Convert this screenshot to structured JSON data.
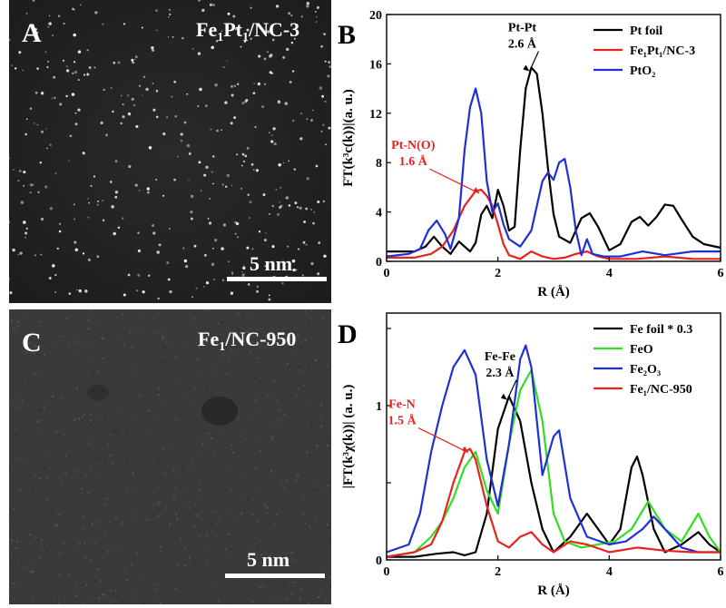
{
  "panels": {
    "A": {
      "letter": "A",
      "label_main": "Fe",
      "label_sub1": "1",
      "label_mid": "Pt",
      "label_sub2": "1",
      "label_end": "/NC-3",
      "scale": "5 nm"
    },
    "C": {
      "letter": "C",
      "label_main": "Fe",
      "label_sub1": "1",
      "label_end": "/NC-950",
      "scale": "5 nm"
    },
    "B": {
      "letter": "B"
    },
    "D": {
      "letter": "D"
    }
  },
  "chart_data": [
    {
      "panel": "B",
      "type": "line",
      "xlabel": "R (Å)",
      "ylabel": "FT(k³c(k))|(a. u.)",
      "xlim": [
        0,
        6
      ],
      "ylim": [
        0,
        20
      ],
      "xticks": [
        0,
        2,
        4,
        6
      ],
      "yticks": [
        0,
        4,
        8,
        12,
        16,
        20
      ],
      "legend_position": "top-right",
      "series": [
        {
          "name": "Pt foil",
          "color": "#000000",
          "x": [
            0,
            0.5,
            0.7,
            0.85,
            1.0,
            1.15,
            1.3,
            1.4,
            1.5,
            1.6,
            1.7,
            1.8,
            1.9,
            2.0,
            2.1,
            2.2,
            2.3,
            2.4,
            2.5,
            2.6,
            2.7,
            2.8,
            2.9,
            3.0,
            3.1,
            3.3,
            3.5,
            3.65,
            3.8,
            4.0,
            4.2,
            4.4,
            4.55,
            4.7,
            4.85,
            5.0,
            5.15,
            5.3,
            5.5,
            5.7,
            6.0
          ],
          "y": [
            0.8,
            0.8,
            1.2,
            2.0,
            1.2,
            0.6,
            1.6,
            1.2,
            0.8,
            1.5,
            3.8,
            4.5,
            3.5,
            5.8,
            4.5,
            2.5,
            2.8,
            9.0,
            14.0,
            15.7,
            15.2,
            12.0,
            7.5,
            3.8,
            2.0,
            1.5,
            3.5,
            3.9,
            2.8,
            0.9,
            1.4,
            3.2,
            3.6,
            2.9,
            3.6,
            4.6,
            4.5,
            3.4,
            2.0,
            1.4,
            1.1
          ]
        },
        {
          "name": "Fe₁Pt₁/NC-3",
          "color": "#e8221c",
          "x": [
            0,
            0.5,
            0.8,
            1.0,
            1.2,
            1.4,
            1.6,
            1.7,
            1.8,
            1.9,
            2.0,
            2.1,
            2.2,
            2.4,
            2.6,
            2.8,
            3.0,
            3.2,
            3.4,
            3.6,
            3.8,
            4.0,
            4.5,
            5.0,
            5.5,
            6.0
          ],
          "y": [
            0.3,
            0.3,
            0.6,
            1.2,
            2.5,
            4.5,
            5.7,
            5.8,
            5.3,
            4.5,
            3.0,
            1.4,
            0.5,
            0.2,
            0.8,
            0.4,
            0.2,
            0.3,
            0.6,
            0.8,
            0.4,
            0.2,
            0.2,
            0.4,
            0.2,
            0.2
          ]
        },
        {
          "name": "PtO₂",
          "color": "#1f2fd6",
          "x": [
            0,
            0.4,
            0.6,
            0.75,
            0.9,
            1.05,
            1.15,
            1.3,
            1.4,
            1.5,
            1.6,
            1.7,
            1.8,
            1.9,
            2.0,
            2.1,
            2.2,
            2.4,
            2.6,
            2.8,
            2.9,
            3.0,
            3.1,
            3.2,
            3.3,
            3.4,
            3.5,
            3.6,
            3.7,
            3.9,
            4.2,
            4.6,
            5.0,
            5.5,
            6.0
          ],
          "y": [
            0.4,
            0.6,
            1.0,
            2.5,
            3.3,
            2.2,
            1.0,
            3.5,
            9.0,
            12.5,
            14.0,
            12.0,
            6.5,
            4.0,
            4.7,
            3.0,
            1.8,
            1.2,
            2.5,
            6.5,
            7.2,
            6.6,
            8.0,
            8.3,
            6.0,
            2.5,
            0.5,
            1.8,
            0.6,
            0.4,
            0.4,
            0.8,
            0.5,
            0.8,
            0.8
          ]
        }
      ],
      "annotations": [
        {
          "text_line1": "Pt-Pt",
          "text_line2": "2.6 Å",
          "color": "#000000",
          "x": 2.6,
          "y": 15.7
        },
        {
          "text_line1": "Pt-N(O)",
          "text_line2": "1.6 Å",
          "color": "#e8221c",
          "x": 1.7,
          "y": 5.8
        }
      ]
    },
    {
      "panel": "D",
      "type": "line",
      "xlabel": "R (Å)",
      "ylabel": "|FT(k³χ(k))| (a. u.)",
      "xlim": [
        0,
        6
      ],
      "ylim": [
        0,
        1.6
      ],
      "xticks": [
        0,
        2,
        4,
        6
      ],
      "yticks": [
        0,
        0.5,
        1.0,
        1.5
      ],
      "ytick_labels": [
        "0",
        "",
        "1",
        ""
      ],
      "legend_position": "top-right",
      "series": [
        {
          "name": "Fe foil * 0.3",
          "color": "#000000",
          "x": [
            0,
            0.5,
            0.9,
            1.2,
            1.4,
            1.6,
            1.8,
            2.0,
            2.2,
            2.4,
            2.6,
            2.8,
            3.0,
            3.3,
            3.6,
            3.8,
            4.0,
            4.2,
            4.4,
            4.5,
            4.6,
            4.8,
            5.0,
            5.3,
            5.6,
            5.8,
            6.0
          ],
          "y": [
            0.02,
            0.02,
            0.04,
            0.05,
            0.03,
            0.05,
            0.3,
            0.85,
            1.06,
            0.9,
            0.5,
            0.2,
            0.05,
            0.15,
            0.3,
            0.2,
            0.1,
            0.2,
            0.6,
            0.67,
            0.55,
            0.2,
            0.05,
            0.1,
            0.18,
            0.1,
            0.05
          ]
        },
        {
          "name": "FeO",
          "color": "#33dd22",
          "x": [
            0,
            0.5,
            0.8,
            1.0,
            1.2,
            1.4,
            1.6,
            1.8,
            2.0,
            2.2,
            2.4,
            2.6,
            2.8,
            3.0,
            3.2,
            3.5,
            3.8,
            4.1,
            4.4,
            4.7,
            5.0,
            5.3,
            5.6,
            5.8,
            6.0
          ],
          "y": [
            0.02,
            0.05,
            0.15,
            0.25,
            0.4,
            0.6,
            0.7,
            0.45,
            0.3,
            0.75,
            1.1,
            1.23,
            0.9,
            0.3,
            0.12,
            0.08,
            0.1,
            0.12,
            0.2,
            0.38,
            0.2,
            0.12,
            0.3,
            0.15,
            0.05
          ]
        },
        {
          "name": "Fe₂O₃",
          "color": "#1f2fd6",
          "x": [
            0,
            0.4,
            0.6,
            0.8,
            1.0,
            1.2,
            1.4,
            1.6,
            1.8,
            2.0,
            2.2,
            2.4,
            2.5,
            2.6,
            2.8,
            3.0,
            3.1,
            3.3,
            3.6,
            4.0,
            4.3,
            4.6,
            4.8,
            5.0,
            5.3,
            5.6,
            6.0
          ],
          "y": [
            0.05,
            0.1,
            0.3,
            0.7,
            1.0,
            1.25,
            1.36,
            1.2,
            0.65,
            0.35,
            0.75,
            1.3,
            1.39,
            1.25,
            0.55,
            0.8,
            0.84,
            0.4,
            0.15,
            0.1,
            0.12,
            0.2,
            0.28,
            0.2,
            0.08,
            0.05,
            0.05
          ]
        },
        {
          "name": "Fe₁/NC-950",
          "color": "#e8221c",
          "x": [
            0,
            0.5,
            0.8,
            1.0,
            1.2,
            1.4,
            1.5,
            1.6,
            1.8,
            2.0,
            2.2,
            2.4,
            2.6,
            2.8,
            3.0,
            3.3,
            3.6,
            4.0,
            4.5,
            5.0,
            5.5,
            6.0
          ],
          "y": [
            0.02,
            0.05,
            0.1,
            0.25,
            0.5,
            0.7,
            0.72,
            0.65,
            0.35,
            0.12,
            0.08,
            0.15,
            0.18,
            0.1,
            0.05,
            0.12,
            0.1,
            0.05,
            0.08,
            0.06,
            0.05,
            0.05
          ]
        }
      ],
      "annotations": [
        {
          "text_line1": "Fe-Fe",
          "text_line2": "2.3 Å",
          "color": "#000000",
          "x": 2.2,
          "y": 1.06
        },
        {
          "text_line1": "Fe-N",
          "text_line2": "1.5 Å",
          "color": "#e8221c",
          "x": 1.5,
          "y": 0.72
        }
      ]
    }
  ]
}
